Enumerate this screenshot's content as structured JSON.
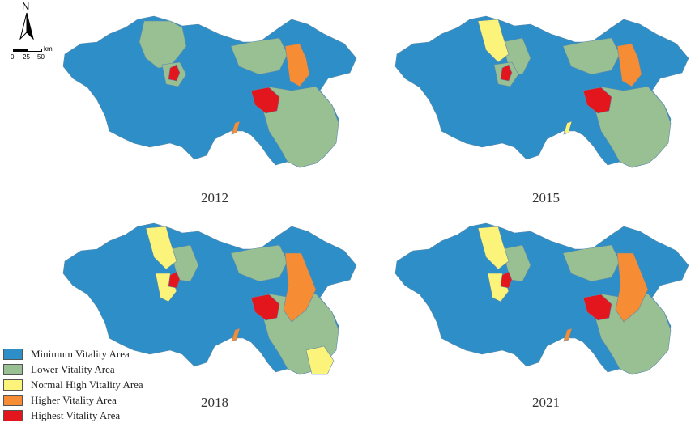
{
  "colors": {
    "minimum": "#2e8fc8",
    "lower": "#98c093",
    "normal_high": "#fbf37a",
    "higher": "#f68c34",
    "highest": "#e3151d"
  },
  "panels": [
    {
      "year": "2012"
    },
    {
      "year": "2015"
    },
    {
      "year": "2018"
    },
    {
      "year": "2021"
    }
  ],
  "legend": [
    {
      "label": "Minimum Vitality Area",
      "color": "#2e8fc8"
    },
    {
      "label": "Lower Vitality Area",
      "color": "#98c093"
    },
    {
      "label": "Normal High Vitality Area",
      "color": "#fbf37a"
    },
    {
      "label": "Higher Vitality Area",
      "color": "#f68c34"
    },
    {
      "label": "Highest Vitality Area",
      "color": "#e3151d"
    }
  ],
  "north_arrow": {
    "label": "N"
  },
  "scale": {
    "ticks": [
      "0",
      "25",
      "50"
    ],
    "unit": "km"
  }
}
